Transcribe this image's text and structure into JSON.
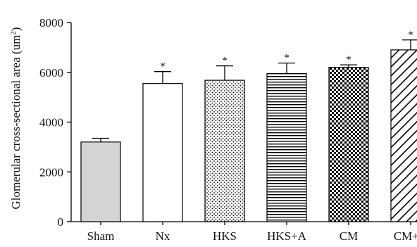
{
  "chart_data": {
    "type": "bar",
    "ylabel": "Glomerular cross-sectional area (um²)",
    "ylabel_main": "Glomerular cross-sectional area (um",
    "ylabel_sup": "2",
    "ylabel_close": ")",
    "categories": [
      "Sham",
      "Nx",
      "HKS",
      "HKS+A",
      "CM",
      "CM+A"
    ],
    "values": [
      3200,
      5550,
      5680,
      5950,
      6200,
      6900
    ],
    "errors": [
      150,
      480,
      580,
      420,
      100,
      400
    ],
    "significance": [
      "",
      "*",
      "*",
      "*",
      "*",
      "*"
    ],
    "patterns": [
      "solid-gray",
      "white",
      "dots",
      "horizontal-lines",
      "checker",
      "diagonal-lines"
    ],
    "ylim": [
      0,
      8000
    ],
    "yticks": [
      0,
      2000,
      4000,
      6000,
      8000
    ],
    "ytick_labels": [
      "0",
      "2000",
      "4000",
      "6000",
      "8000"
    ],
    "colors": {
      "sham_fill": "#d3d4d6",
      "stroke": "#000000",
      "background": "#ffffff"
    }
  }
}
